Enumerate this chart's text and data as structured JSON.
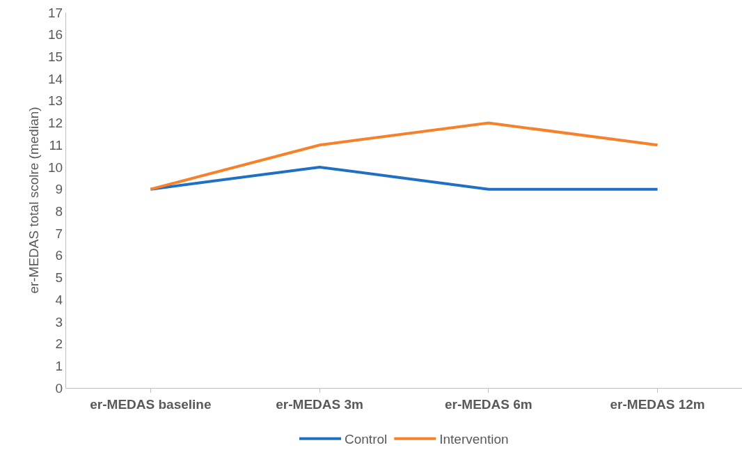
{
  "chart_data": {
    "type": "line",
    "ylabel": "er-MEDAS total scolre (median)",
    "categories": [
      "er-MEDAS baseline",
      "er-MEDAS 3m",
      "er-MEDAS 6m",
      "er-MEDAS 12m"
    ],
    "series": [
      {
        "name": "Control",
        "color": "#1f6fc4",
        "values": [
          9,
          10,
          9,
          9
        ]
      },
      {
        "name": "Intervention",
        "color": "#f7812b",
        "values": [
          9,
          11,
          12,
          11
        ]
      }
    ],
    "ylim": [
      0,
      17
    ],
    "yticks": [
      0,
      1,
      2,
      3,
      4,
      5,
      6,
      7,
      8,
      9,
      10,
      11,
      12,
      13,
      14,
      15,
      16,
      17
    ],
    "legend": "bottom",
    "marker": "none",
    "line_style": "solid"
  }
}
